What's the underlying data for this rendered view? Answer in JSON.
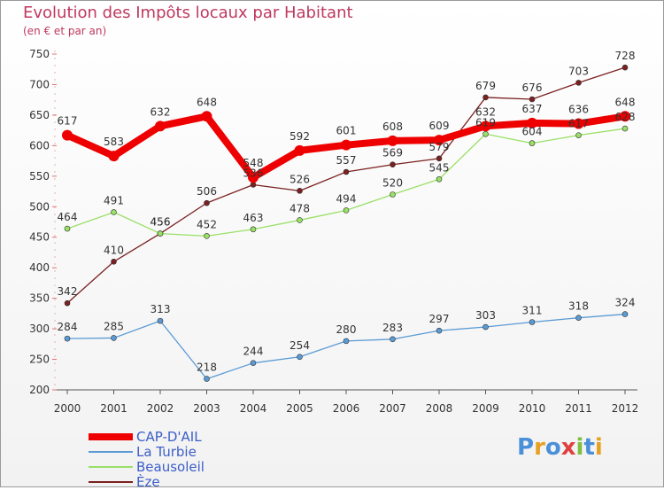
{
  "header": {
    "title": "Evolution des Impôts locaux par Habitant",
    "subtitle": "(en € et par an)"
  },
  "logo": {
    "text": "Proxiti"
  },
  "colors": {
    "title": "#c0385f",
    "CAP-D'AIL": "#ee0000",
    "La Turbie": "#5b9bd5",
    "Beausoleil": "#99e066",
    "Èze": "#7b2020",
    "axis": "#555555",
    "axis_ticks": "#e07070"
  },
  "chart_data": {
    "type": "line",
    "title": "Evolution des Impôts locaux par Habitant",
    "subtitle": "(en € et par an)",
    "xlabel": "",
    "ylabel": "",
    "categories": [
      "2000",
      "2001",
      "2002",
      "2003",
      "2004",
      "2005",
      "2006",
      "2007",
      "2008",
      "2009",
      "2010",
      "2011",
      "2012"
    ],
    "ylim": [
      200,
      750
    ],
    "yticks": [
      200,
      250,
      300,
      350,
      400,
      450,
      500,
      550,
      600,
      650,
      700,
      750
    ],
    "grid": false,
    "legend_position": "bottom-left",
    "series": [
      {
        "name": "CAP-D'AIL",
        "values": [
          617,
          583,
          632,
          648,
          548,
          592,
          601,
          608,
          609,
          632,
          637,
          636,
          648
        ]
      },
      {
        "name": "La Turbie",
        "values": [
          284,
          285,
          313,
          218,
          244,
          254,
          280,
          283,
          297,
          303,
          311,
          318,
          324
        ]
      },
      {
        "name": "Beausoleil",
        "values": [
          464,
          491,
          456,
          452,
          463,
          478,
          494,
          520,
          545,
          619,
          604,
          617,
          628
        ]
      },
      {
        "name": "Èze",
        "values": [
          342,
          410,
          456,
          506,
          536,
          526,
          557,
          569,
          579,
          679,
          676,
          703,
          728
        ]
      }
    ]
  }
}
